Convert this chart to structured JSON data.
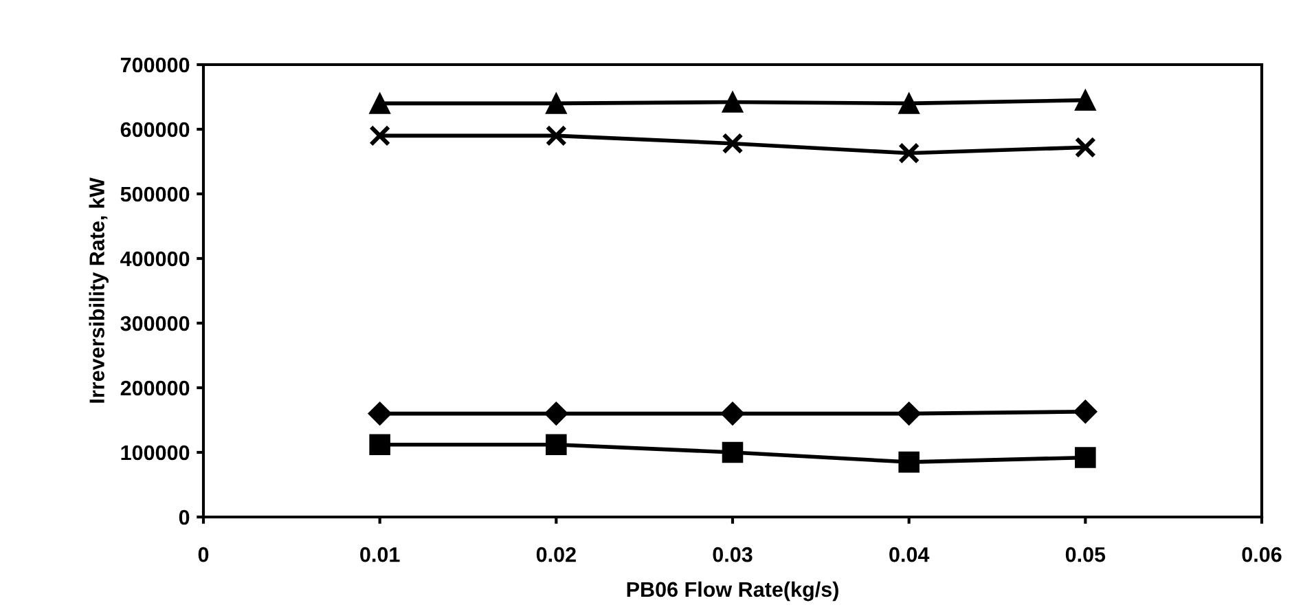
{
  "chart_data": {
    "type": "line",
    "xlabel": "PB06 Flow Rate(kg/s)",
    "ylabel": "Irreversibility Rate, kW",
    "x": [
      0.01,
      0.02,
      0.03,
      0.04,
      0.05
    ],
    "series": [
      {
        "color": "#000000",
        "marker": "triangle",
        "values": [
          640000,
          640000,
          642000,
          640000,
          645000
        ]
      },
      {
        "color": "#000000",
        "marker": "cross",
        "values": [
          590000,
          590000,
          578000,
          563000,
          572000
        ]
      },
      {
        "color": "#000000",
        "marker": "diamond",
        "values": [
          160000,
          160000,
          160000,
          160000,
          163000
        ]
      },
      {
        "color": "#000000",
        "marker": "square",
        "values": [
          112000,
          112000,
          100000,
          85000,
          92000
        ]
      }
    ],
    "xlim": [
      0,
      0.06
    ],
    "xticks": [
      0,
      0.01,
      0.02,
      0.03,
      0.04,
      0.05,
      0.06
    ],
    "ylim": [
      0,
      700000
    ],
    "yticks": [
      0,
      100000,
      200000,
      300000,
      400000,
      500000,
      600000,
      700000
    ],
    "grid": false,
    "legend": false,
    "line_style": "solid"
  }
}
